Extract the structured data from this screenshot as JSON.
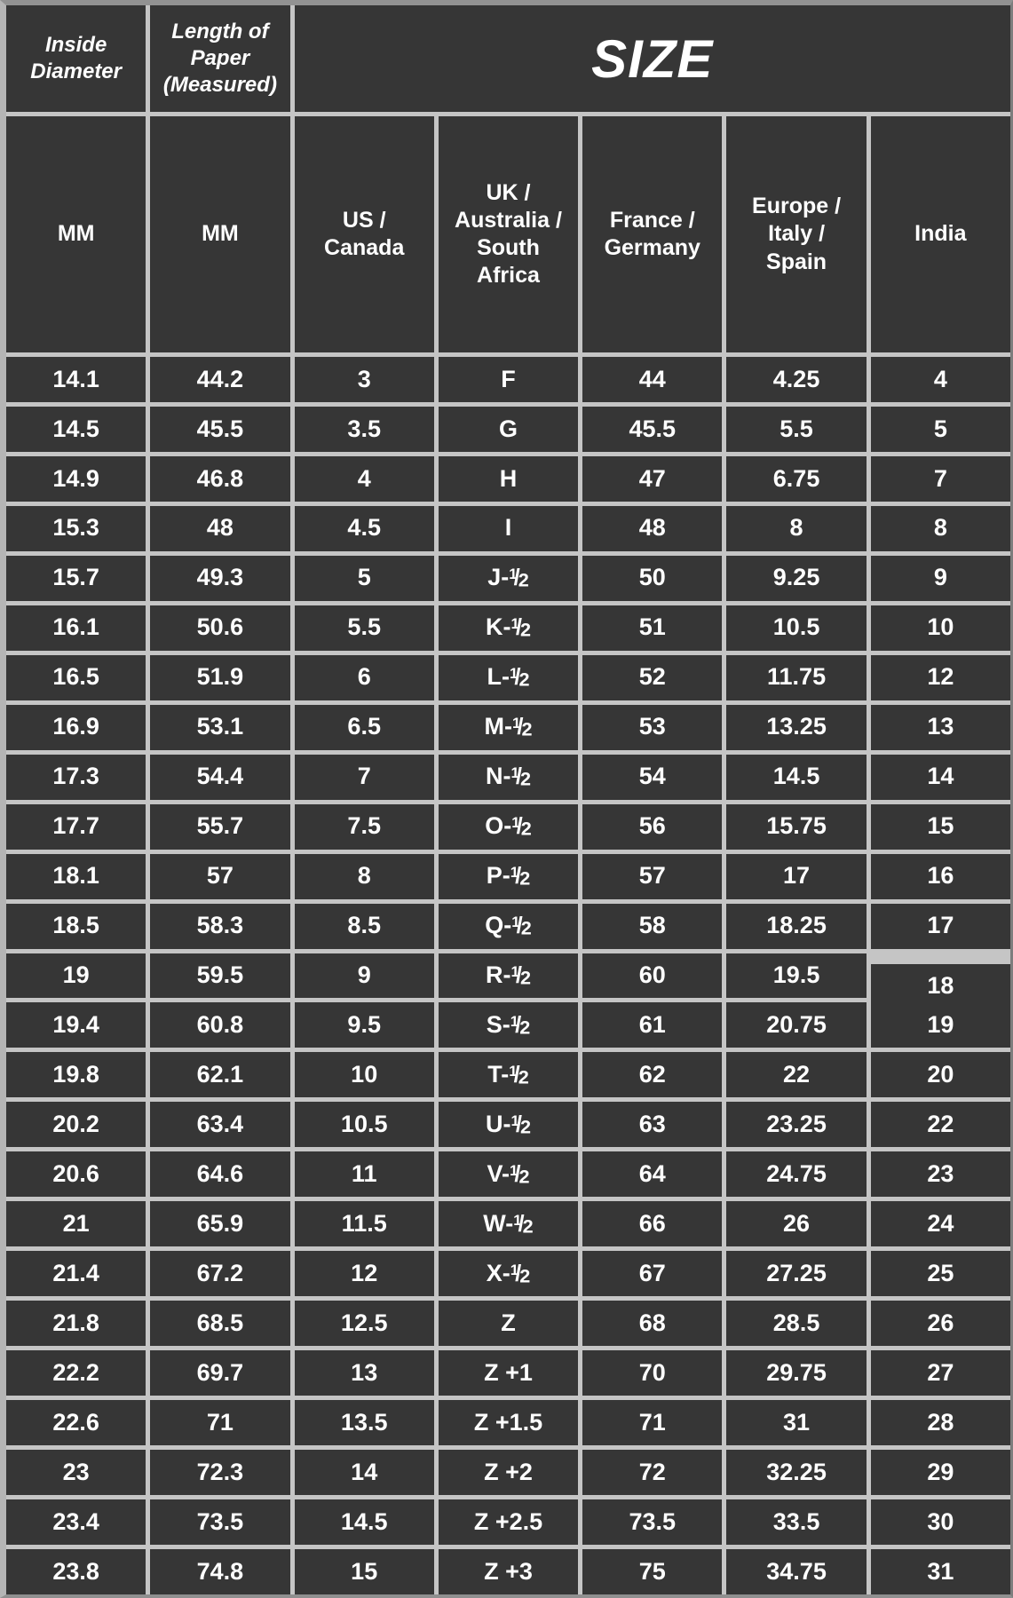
{
  "table": {
    "title_headers": {
      "inside_diameter": "Inside Diameter",
      "length_of_paper": "Length of Paper (Measured)",
      "size": "SIZE"
    },
    "unit_headers": [
      "MM",
      "MM",
      "US / Canada",
      "UK / Australia / South Africa",
      "France / Germany",
      "Europe / Italy / Spain",
      "India"
    ],
    "rows": [
      [
        "14.1",
        "44.2",
        "3",
        "F",
        "44",
        "4.25",
        "4"
      ],
      [
        "14.5",
        "45.5",
        "3.5",
        "G",
        "45.5",
        "5.5",
        "5"
      ],
      [
        "14.9",
        "46.8",
        "4",
        "H",
        "47",
        "6.75",
        "7"
      ],
      [
        "15.3",
        "48",
        "4.5",
        "I",
        "48",
        "8",
        "8"
      ],
      [
        "15.7",
        "49.3",
        "5",
        "J-1/2",
        "50",
        "9.25",
        "9"
      ],
      [
        "16.1",
        "50.6",
        "5.5",
        "K-1/2",
        "51",
        "10.5",
        "10"
      ],
      [
        "16.5",
        "51.9",
        "6",
        "L-1/2",
        "52",
        "11.75",
        "12"
      ],
      [
        "16.9",
        "53.1",
        "6.5",
        "M-1/2",
        "53",
        "13.25",
        "13"
      ],
      [
        "17.3",
        "54.4",
        "7",
        "N-1/2",
        "54",
        "14.5",
        "14"
      ],
      [
        "17.7",
        "55.7",
        "7.5",
        "O-1/2",
        "56",
        "15.75",
        "15"
      ],
      [
        "18.1",
        "57",
        "8",
        "P-1/2",
        "57",
        "17",
        "16"
      ],
      [
        "18.5",
        "58.3",
        "8.5",
        "Q-1/2",
        "58",
        "18.25",
        "17"
      ],
      [
        "19",
        "59.5",
        "9",
        "R-1/2",
        "60",
        "19.5",
        "18"
      ],
      [
        "19.4",
        "60.8",
        "9.5",
        "S-1/2",
        "61",
        "20.75",
        "19"
      ],
      [
        "19.8",
        "62.1",
        "10",
        "T-1/2",
        "62",
        "22",
        "20"
      ],
      [
        "20.2",
        "63.4",
        "10.5",
        "U-1/2",
        "63",
        "23.25",
        "22"
      ],
      [
        "20.6",
        "64.6",
        "11",
        "V-1/2",
        "64",
        "24.75",
        "23"
      ],
      [
        "21",
        "65.9",
        "11.5",
        "W-1/2",
        "66",
        "26",
        "24"
      ],
      [
        "21.4",
        "67.2",
        "12",
        "X-1/2",
        "67",
        "27.25",
        "25"
      ],
      [
        "21.8",
        "68.5",
        "12.5",
        "Z",
        "68",
        "28.5",
        "26"
      ],
      [
        "22.2",
        "69.7",
        "13",
        "Z +1",
        "70",
        "29.75",
        "27"
      ],
      [
        "22.6",
        "71",
        "13.5",
        "Z +1.5",
        "71",
        "31",
        "28"
      ],
      [
        "23",
        "72.3",
        "14",
        "Z +2",
        "72",
        "32.25",
        "29"
      ],
      [
        "23.4",
        "73.5",
        "14.5",
        "Z +2.5",
        "73.5",
        "33.5",
        "30"
      ],
      [
        "23.8",
        "74.8",
        "15",
        "Z +3",
        "75",
        "34.75",
        "31"
      ]
    ],
    "offset_cell": {
      "row": 12,
      "col": 6
    },
    "colors": {
      "cell_background": "#363636",
      "gridline": "#c5c5c5",
      "text": "#ffffff",
      "outer_border": "#8f8f8f"
    }
  }
}
